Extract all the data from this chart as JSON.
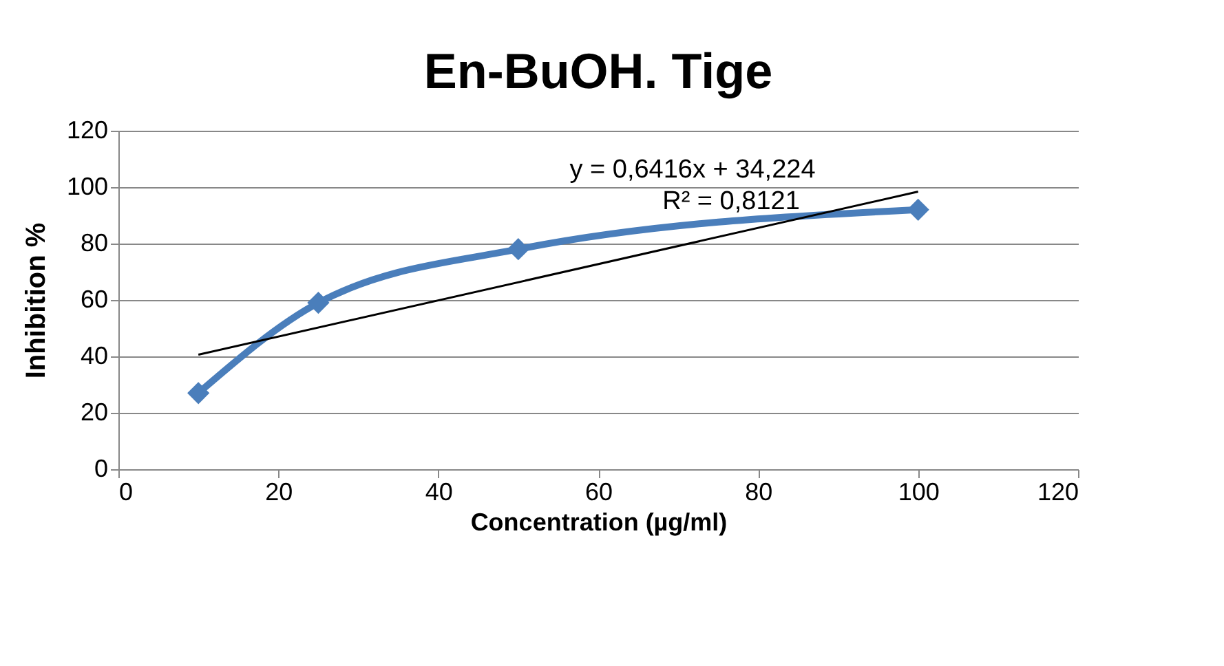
{
  "chart_data": {
    "type": "line",
    "title": "En-BuOH. Tige",
    "xlabel": "Concentration (µg/ml)",
    "ylabel": "Inhibition %",
    "x": [
      10,
      25,
      50,
      100
    ],
    "series": [
      {
        "color": "#4a7ebb",
        "values": [
          27,
          59,
          78,
          92
        ],
        "marker": "diamond"
      },
      {
        "type": "line",
        "color": "#000000",
        "x": [
          10,
          100
        ],
        "values": [
          40.6,
          98.4
        ],
        "marker": "none"
      }
    ],
    "xlim": [
      0,
      120
    ],
    "xticks": [
      0,
      20,
      40,
      60,
      80,
      100,
      120
    ],
    "ylim": [
      0,
      120
    ],
    "yticks": [
      0,
      20,
      40,
      60,
      80,
      100,
      120
    ],
    "grid": "y",
    "line_style": "solid",
    "annotations": [
      "y = 0,6416x + 34,224",
      "R² = 0,8121"
    ]
  }
}
